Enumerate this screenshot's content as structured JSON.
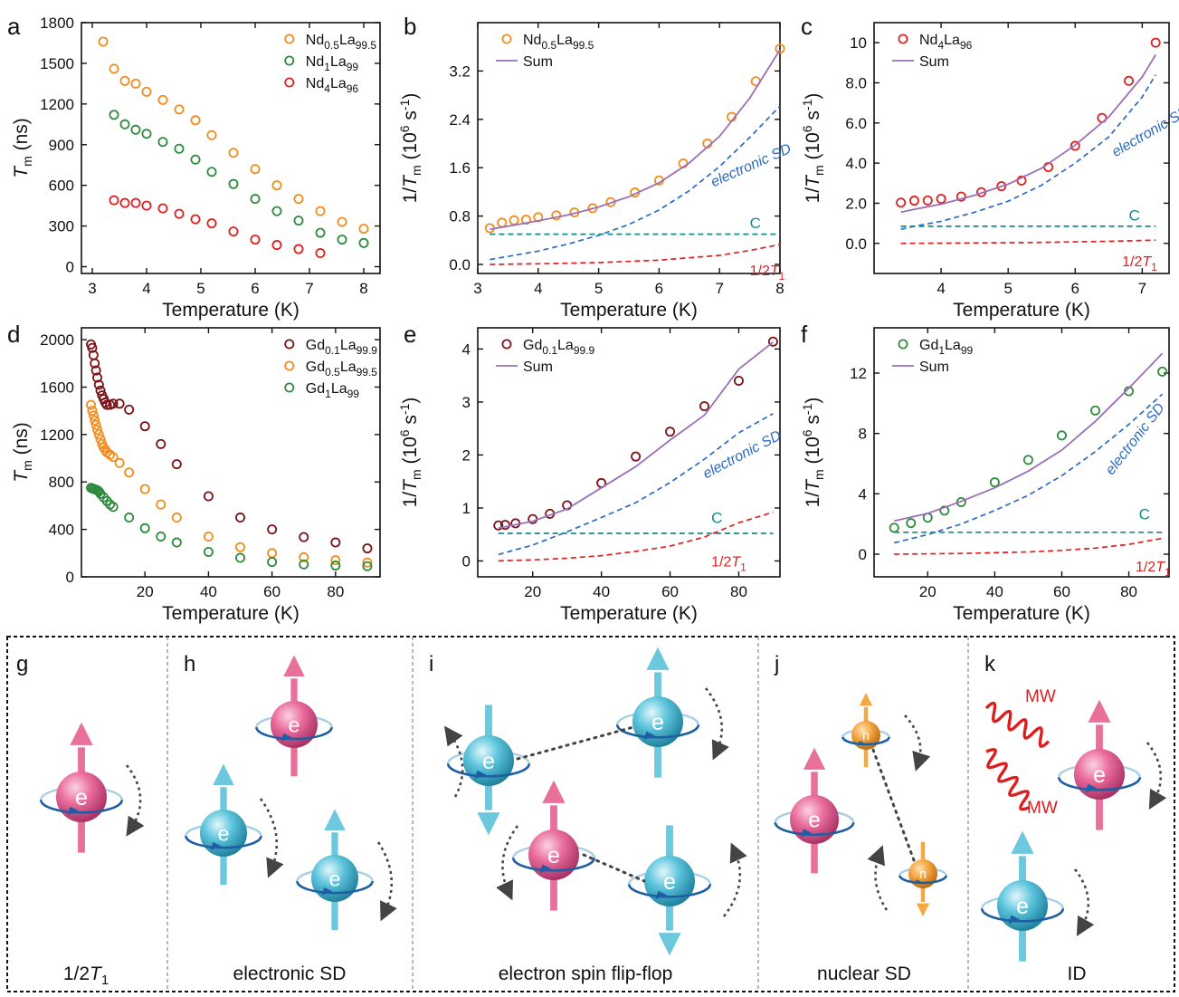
{
  "colors": {
    "orange": "#f28c1e",
    "green": "#2e8b3e",
    "red": "#e02020",
    "darkred": "#7a1418",
    "purple": "#9b6fb5",
    "blue": "#2b6cc0",
    "teal": "#148a8a",
    "pink": "#e8709a",
    "cyan": "#6cc8dc",
    "amber": "#f5a742",
    "axis": "#111111",
    "arrow_dash": "#555555",
    "mw": "#dc1e1e"
  },
  "chart_data": [
    {
      "panel": "a",
      "type": "scatter",
      "xlabel": "Temperature (K)",
      "ylabel_main": "T",
      "ylabel_sub": "m",
      "ylabel_unit": " (ns)",
      "xlim": [
        2.8,
        8.3
      ],
      "ylim": [
        -50,
        1800
      ],
      "xticks": [
        3,
        4,
        5,
        6,
        7,
        8
      ],
      "yticks": [
        0,
        300,
        600,
        900,
        1200,
        1500,
        1800
      ],
      "series": [
        {
          "name": "Nd0.5La99.5",
          "label_parts": [
            "Nd",
            "0.5",
            "La",
            "99.5"
          ],
          "color": "orange",
          "x": [
            3.2,
            3.4,
            3.6,
            3.8,
            4.0,
            4.3,
            4.6,
            4.9,
            5.2,
            5.6,
            6.0,
            6.4,
            6.8,
            7.2,
            7.6,
            8.0
          ],
          "y": [
            1660,
            1460,
            1370,
            1350,
            1290,
            1230,
            1160,
            1080,
            970,
            840,
            720,
            600,
            500,
            410,
            330,
            280
          ]
        },
        {
          "name": "Nd1La99",
          "label_parts": [
            "Nd",
            "1",
            "La",
            "99"
          ],
          "color": "green",
          "x": [
            3.4,
            3.6,
            3.8,
            4.0,
            4.3,
            4.6,
            4.9,
            5.2,
            5.6,
            6.0,
            6.4,
            6.8,
            7.2,
            7.6,
            8.0
          ],
          "y": [
            1120,
            1050,
            1010,
            980,
            920,
            870,
            790,
            700,
            610,
            500,
            410,
            340,
            250,
            200,
            175
          ]
        },
        {
          "name": "Nd4La96",
          "label_parts": [
            "Nd",
            "4",
            "La",
            "96"
          ],
          "color": "red",
          "x": [
            3.4,
            3.6,
            3.8,
            4.0,
            4.3,
            4.6,
            4.9,
            5.2,
            5.6,
            6.0,
            6.4,
            6.8,
            7.2
          ],
          "y": [
            490,
            470,
            470,
            450,
            430,
            390,
            350,
            320,
            260,
            200,
            160,
            130,
            100
          ]
        }
      ]
    },
    {
      "panel": "b",
      "type": "scatter+line",
      "xlabel": "Temperature (K)",
      "ylabel_main": "1/T",
      "ylabel_sub": "m",
      "ylabel_unit": " (10",
      "ylabel_sup": "6",
      "ylabel_unit2": " s",
      "ylabel_sup2": "-1",
      "ylabel_end": ")",
      "xlim": [
        3.0,
        8.0
      ],
      "ylim": [
        -0.15,
        4.0
      ],
      "xticks": [
        3,
        4,
        5,
        6,
        7,
        8
      ],
      "yticks": [
        0.0,
        0.8,
        1.6,
        2.4,
        3.2
      ],
      "ytick_labels": [
        "0.0",
        "0.8",
        "1.6",
        "2.4",
        "3.2"
      ],
      "series": [
        {
          "name": "Nd0.5La99.5",
          "label_parts": [
            "Nd",
            "0.5",
            "La",
            "99.5"
          ],
          "color": "orange",
          "kind": "points",
          "x": [
            3.2,
            3.4,
            3.6,
            3.8,
            4.0,
            4.3,
            4.6,
            4.9,
            5.2,
            5.6,
            6.0,
            6.4,
            6.8,
            7.2,
            7.6,
            8.0
          ],
          "y": [
            0.6,
            0.69,
            0.73,
            0.74,
            0.78,
            0.81,
            0.86,
            0.93,
            1.03,
            1.19,
            1.39,
            1.67,
            2.0,
            2.44,
            3.03,
            3.57
          ]
        },
        {
          "name": "Sum",
          "color": "purple",
          "kind": "line",
          "x": [
            3.2,
            3.6,
            4.0,
            4.5,
            5.0,
            5.5,
            6.0,
            6.5,
            7.0,
            7.5,
            8.0
          ],
          "y": [
            0.58,
            0.65,
            0.72,
            0.82,
            0.95,
            1.12,
            1.35,
            1.68,
            2.12,
            2.75,
            3.55
          ]
        },
        {
          "name": "electronic SD",
          "color": "blue",
          "kind": "dash",
          "x": [
            3.2,
            3.6,
            4.0,
            4.5,
            5.0,
            5.5,
            6.0,
            6.5,
            7.0,
            7.5,
            8.0
          ],
          "y": [
            0.08,
            0.15,
            0.22,
            0.34,
            0.48,
            0.66,
            0.9,
            1.22,
            1.62,
            2.1,
            2.62
          ]
        },
        {
          "name": "C",
          "color": "teal",
          "kind": "dash",
          "x": [
            3.2,
            8.0
          ],
          "y": [
            0.5,
            0.5
          ]
        },
        {
          "name": "1/2T1",
          "color": "red",
          "kind": "dash",
          "x": [
            3.2,
            4.0,
            5.0,
            6.0,
            7.0,
            7.5,
            8.0
          ],
          "y": [
            0.0,
            0.01,
            0.03,
            0.07,
            0.15,
            0.23,
            0.33
          ]
        }
      ]
    },
    {
      "panel": "c",
      "type": "scatter+line",
      "xlabel": "Temperature (K)",
      "ylabel_main": "1/T",
      "ylabel_sub": "m",
      "ylabel_unit": " (10",
      "ylabel_sup": "6",
      "ylabel_unit2": " s",
      "ylabel_sup2": "-1",
      "ylabel_end": ")",
      "xlim": [
        3.0,
        7.4
      ],
      "ylim": [
        -1.5,
        11
      ],
      "xticks": [
        4,
        5,
        6,
        7
      ],
      "yticks": [
        0,
        2,
        4,
        6,
        8,
        10
      ],
      "ytick_labels": [
        "0.0",
        "2.0",
        "4.0",
        "6.0",
        "8.0",
        "10"
      ],
      "series": [
        {
          "name": "Nd4La96",
          "label_parts": [
            "Nd",
            "4",
            "La",
            "96"
          ],
          "color": "red",
          "kind": "points",
          "x": [
            3.4,
            3.6,
            3.8,
            4.0,
            4.3,
            4.6,
            4.9,
            5.2,
            5.6,
            6.0,
            6.4,
            6.8,
            7.2
          ],
          "y": [
            2.03,
            2.13,
            2.14,
            2.22,
            2.33,
            2.55,
            2.85,
            3.13,
            3.8,
            4.86,
            6.25,
            8.1,
            10.0
          ]
        },
        {
          "name": "Sum",
          "color": "purple",
          "kind": "line",
          "x": [
            3.4,
            3.6,
            4.0,
            4.5,
            5.0,
            5.5,
            6.0,
            6.5,
            7.0,
            7.2
          ],
          "y": [
            1.55,
            1.7,
            1.95,
            2.4,
            2.95,
            3.75,
            4.9,
            6.3,
            8.3,
            9.4
          ]
        },
        {
          "name": "electronic SD",
          "color": "blue",
          "kind": "dash",
          "x": [
            3.4,
            3.6,
            4.0,
            4.5,
            5.0,
            5.5,
            6.0,
            6.5,
            7.0,
            7.2
          ],
          "y": [
            0.7,
            0.85,
            1.1,
            1.55,
            2.1,
            2.9,
            4.0,
            5.3,
            7.3,
            8.4
          ]
        },
        {
          "name": "C",
          "color": "teal",
          "kind": "dash",
          "x": [
            3.4,
            7.2
          ],
          "y": [
            0.85,
            0.85
          ]
        },
        {
          "name": "1/2T1",
          "color": "red",
          "kind": "dash",
          "x": [
            3.4,
            4.5,
            5.5,
            6.5,
            7.2
          ],
          "y": [
            0.0,
            0.02,
            0.05,
            0.1,
            0.16
          ]
        }
      ]
    },
    {
      "panel": "d",
      "type": "scatter",
      "xlabel": "Temperature (K)",
      "ylabel_main": "T",
      "ylabel_sub": "m",
      "ylabel_unit": " (ns)",
      "xlim": [
        0,
        94
      ],
      "ylim": [
        0,
        2100
      ],
      "xticks": [
        20,
        40,
        60,
        80
      ],
      "yticks": [
        0,
        400,
        800,
        1200,
        1600,
        2000
      ],
      "series": [
        {
          "name": "Gd0.1La99.9",
          "label_parts": [
            "Gd",
            "0.1",
            "La",
            "99.9"
          ],
          "color": "darkred",
          "x": [
            3.0,
            3.4,
            3.8,
            4.2,
            4.6,
            5.0,
            5.5,
            6.0,
            6.5,
            7.0,
            7.5,
            8.0,
            9.0,
            10.0,
            12.0,
            15.0,
            20,
            25,
            30,
            40,
            50,
            60,
            70,
            80,
            90
          ],
          "y": [
            1960,
            1930,
            1870,
            1800,
            1740,
            1680,
            1620,
            1570,
            1530,
            1500,
            1470,
            1450,
            1450,
            1460,
            1460,
            1410,
            1270,
            1120,
            950,
            680,
            500,
            400,
            335,
            290,
            240
          ]
        },
        {
          "name": "Gd0.5La99.5",
          "label_parts": [
            "Gd",
            "0.5",
            "La",
            "99.5"
          ],
          "color": "orange",
          "x": [
            3.0,
            3.4,
            3.8,
            4.2,
            4.6,
            5.0,
            5.5,
            6.0,
            6.5,
            7.0,
            7.5,
            8.0,
            9.0,
            10.0,
            12.0,
            15.0,
            20,
            25,
            30,
            40,
            50,
            60,
            70,
            80,
            90
          ],
          "y": [
            1450,
            1400,
            1360,
            1320,
            1280,
            1240,
            1200,
            1160,
            1120,
            1090,
            1070,
            1050,
            1030,
            1010,
            960,
            880,
            740,
            610,
            500,
            340,
            250,
            200,
            165,
            140,
            120
          ]
        },
        {
          "name": "Gd1La99",
          "label_parts": [
            "Gd",
            "1",
            "La",
            "99"
          ],
          "color": "green",
          "x": [
            3.0,
            3.5,
            4.0,
            4.5,
            5.0,
            5.5,
            6.0,
            7.0,
            8.0,
            9.0,
            10.0,
            15.0,
            20,
            25,
            30,
            40,
            50,
            60,
            70,
            80,
            90
          ],
          "y": [
            750,
            745,
            740,
            735,
            730,
            720,
            700,
            670,
            640,
            610,
            590,
            500,
            410,
            340,
            290,
            210,
            160,
            125,
            105,
            95,
            90
          ]
        }
      ]
    },
    {
      "panel": "e",
      "type": "scatter+line",
      "xlabel": "Temperature (K)",
      "ylabel_main": "1/T",
      "ylabel_sub": "m",
      "ylabel_unit": " (10",
      "ylabel_sup": "6",
      "ylabel_unit2": " s",
      "ylabel_sup2": "-1",
      "ylabel_end": ")",
      "xlim": [
        4,
        92
      ],
      "ylim": [
        -0.3,
        4.4
      ],
      "xticks": [
        20,
        40,
        60,
        80
      ],
      "yticks": [
        0,
        1,
        2,
        3,
        4
      ],
      "ytick_labels": [
        "0",
        "1",
        "2",
        "3",
        "4"
      ],
      "series": [
        {
          "name": "Gd0.1La99.9",
          "label_parts": [
            "Gd",
            "0.1",
            "La",
            "99.9"
          ],
          "color": "darkred",
          "kind": "points",
          "x": [
            10,
            12,
            15,
            20,
            25,
            30,
            40,
            50,
            60,
            70,
            80,
            90
          ],
          "y": [
            0.67,
            0.68,
            0.71,
            0.79,
            0.89,
            1.05,
            1.47,
            1.97,
            2.44,
            2.92,
            3.4,
            4.14
          ]
        },
        {
          "name": "Sum",
          "color": "purple",
          "kind": "line",
          "x": [
            10,
            20,
            30,
            40,
            50,
            60,
            70,
            80,
            90
          ],
          "y": [
            0.62,
            0.75,
            0.98,
            1.38,
            1.78,
            2.28,
            2.75,
            3.62,
            4.13
          ]
        },
        {
          "name": "electronic SD",
          "color": "blue",
          "kind": "dash",
          "x": [
            10,
            20,
            30,
            40,
            50,
            60,
            70,
            80,
            90
          ],
          "y": [
            0.12,
            0.3,
            0.55,
            0.82,
            1.1,
            1.48,
            1.92,
            2.42,
            2.78
          ]
        },
        {
          "name": "C",
          "color": "teal",
          "kind": "dash",
          "x": [
            10,
            90
          ],
          "y": [
            0.52,
            0.52
          ]
        },
        {
          "name": "1/2T1",
          "color": "red",
          "kind": "dash",
          "x": [
            10,
            20,
            30,
            40,
            50,
            60,
            70,
            80,
            90
          ],
          "y": [
            0.0,
            0.02,
            0.05,
            0.1,
            0.18,
            0.28,
            0.45,
            0.72,
            0.92
          ]
        }
      ]
    },
    {
      "panel": "f",
      "type": "scatter+line",
      "xlabel": "Temperature (K)",
      "ylabel_main": "1/T",
      "ylabel_sub": "m",
      "ylabel_unit": " (10",
      "ylabel_sup": "6",
      "ylabel_unit2": " s",
      "ylabel_sup2": "-1",
      "ylabel_end": ")",
      "xlim": [
        4,
        92
      ],
      "ylim": [
        -1.5,
        15
      ],
      "xticks": [
        20,
        40,
        60,
        80
      ],
      "yticks": [
        0,
        4,
        8,
        12
      ],
      "ytick_labels": [
        "0",
        "4",
        "8",
        "12"
      ],
      "series": [
        {
          "name": "Gd1La99",
          "label_parts": [
            "Gd",
            "1",
            "La",
            "99"
          ],
          "color": "green",
          "kind": "points",
          "x": [
            10,
            15,
            20,
            25,
            30,
            40,
            50,
            60,
            70,
            80,
            90
          ],
          "y": [
            1.75,
            2.06,
            2.42,
            2.89,
            3.45,
            4.76,
            6.25,
            7.87,
            9.52,
            10.8,
            12.1
          ]
        },
        {
          "name": "Sum",
          "color": "purple",
          "kind": "line",
          "x": [
            10,
            20,
            30,
            40,
            50,
            60,
            70,
            80,
            90
          ],
          "y": [
            2.2,
            2.7,
            3.5,
            4.4,
            5.5,
            6.9,
            8.8,
            11.0,
            13.3
          ]
        },
        {
          "name": "electronic SD",
          "color": "blue",
          "kind": "dash",
          "x": [
            10,
            20,
            30,
            40,
            50,
            60,
            70,
            80,
            90
          ],
          "y": [
            0.75,
            1.3,
            2.0,
            2.9,
            3.9,
            5.2,
            6.8,
            8.6,
            10.6
          ]
        },
        {
          "name": "C",
          "color": "teal",
          "kind": "dash",
          "x": [
            10,
            90
          ],
          "y": [
            1.45,
            1.45
          ]
        },
        {
          "name": "1/2T1",
          "color": "red",
          "kind": "dash",
          "x": [
            10,
            30,
            50,
            60,
            70,
            80,
            90
          ],
          "y": [
            0.0,
            0.05,
            0.15,
            0.25,
            0.4,
            0.65,
            1.05
          ]
        }
      ]
    }
  ],
  "panel_letters": [
    "a",
    "b",
    "c",
    "d",
    "e",
    "f",
    "g",
    "h",
    "i",
    "j",
    "k"
  ],
  "curve_labels": {
    "electronic_sd": "electronic SD",
    "c": "C",
    "half_t1_main": "1/2",
    "half_t1_T": "T",
    "half_t1_sub": "1",
    "sum": "Sum"
  },
  "schematics": {
    "g": {
      "caption_main": "1/2",
      "caption_T": "T",
      "caption_sub": "1"
    },
    "h": {
      "caption": "electronic SD"
    },
    "i": {
      "caption": "electron spin flip-flop"
    },
    "j": {
      "caption": "nuclear SD"
    },
    "k": {
      "caption": "ID",
      "mw_label": "MW"
    },
    "electron_letter": "e",
    "nucleus_letter": "n"
  }
}
